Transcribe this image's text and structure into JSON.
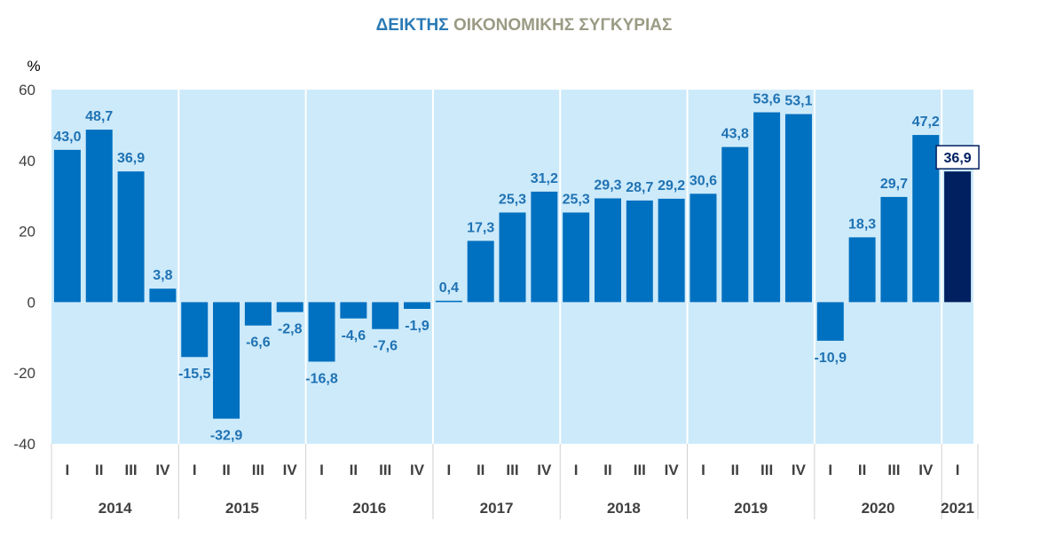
{
  "title_part1": "ΔΕΙΚΤΗΣ",
  "title_part2": "ΟΙΚΟΝΟΜΙΚΗΣ ΣΥΓΚΥΡΙΑΣ",
  "chart_data": {
    "type": "bar",
    "ylabel": "%",
    "ylim": [
      -40,
      60
    ],
    "yticks": [
      -40,
      -20,
      0,
      20,
      40,
      60
    ],
    "years": [
      {
        "label": "2014",
        "quarters": [
          "I",
          "II",
          "III",
          "IV"
        ]
      },
      {
        "label": "2015",
        "quarters": [
          "I",
          "II",
          "III",
          "IV"
        ]
      },
      {
        "label": "2016",
        "quarters": [
          "I",
          "II",
          "III",
          "IV"
        ]
      },
      {
        "label": "2017",
        "quarters": [
          "I",
          "II",
          "III",
          "IV"
        ]
      },
      {
        "label": "2018",
        "quarters": [
          "I",
          "II",
          "III",
          "IV"
        ]
      },
      {
        "label": "2019",
        "quarters": [
          "I",
          "II",
          "III",
          "IV"
        ]
      },
      {
        "label": "2020",
        "quarters": [
          "I",
          "II",
          "III",
          "IV"
        ]
      },
      {
        "label": "2021",
        "quarters": [
          "I"
        ]
      }
    ],
    "values": [
      43.0,
      48.7,
      36.9,
      3.8,
      -15.5,
      -32.9,
      -6.6,
      -2.8,
      -16.8,
      -4.6,
      -7.6,
      -1.9,
      0.4,
      17.3,
      25.3,
      31.2,
      25.3,
      29.3,
      28.7,
      29.2,
      30.6,
      43.8,
      53.6,
      53.1,
      -10.9,
      18.3,
      29.7,
      47.2,
      36.9
    ],
    "labels": [
      "43,0",
      "48,7",
      "36,9",
      "3,8",
      "-15,5",
      "-32,9",
      "-6,6",
      "-2,8",
      "-16,8",
      "-4,6",
      "-7,6",
      "-1,9",
      "0,4",
      "17,3",
      "25,3",
      "31,2",
      "25,3",
      "29,3",
      "28,7",
      "29,2",
      "30,6",
      "43,8",
      "53,6",
      "53,1",
      "-10,9",
      "18,3",
      "29,7",
      "47,2",
      "36,9"
    ],
    "highlight_last": true,
    "colors": {
      "bar": "#0070c0",
      "bar_highlight": "#002060",
      "label": "#1f72b3",
      "label_highlight": "#002060",
      "plot_bg": "#cdeafa",
      "axis_text": "#404040",
      "divider": "#ffffff"
    }
  }
}
